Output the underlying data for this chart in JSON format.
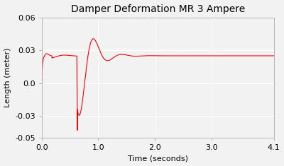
{
  "title": "Damper Deformation MR 3 Ampere",
  "xlabel": "Time (seconds)",
  "ylabel": "Length (meter)",
  "xlim": [
    0.0,
    4.1
  ],
  "ylim": [
    -0.05,
    0.06
  ],
  "xticks": [
    0.0,
    1.0,
    2.0,
    3.0,
    4.1
  ],
  "xtick_labels": [
    "0.0",
    "1.0",
    "2.0",
    "3.0",
    "4.1"
  ],
  "yticks": [
    -0.05,
    -0.03,
    0.0,
    0.03,
    0.06
  ],
  "ytick_labels": [
    "-0.05",
    "-0.03",
    "0.0",
    "0.03",
    "0.06"
  ],
  "line_color": "#ff0000",
  "bg_color": "#f2f2f2",
  "plot_bg": "#f2f2f2",
  "grid_color": "#ffffff",
  "steady_state": 0.025,
  "title_fontsize": 10,
  "label_fontsize": 8,
  "tick_fontsize": 8
}
